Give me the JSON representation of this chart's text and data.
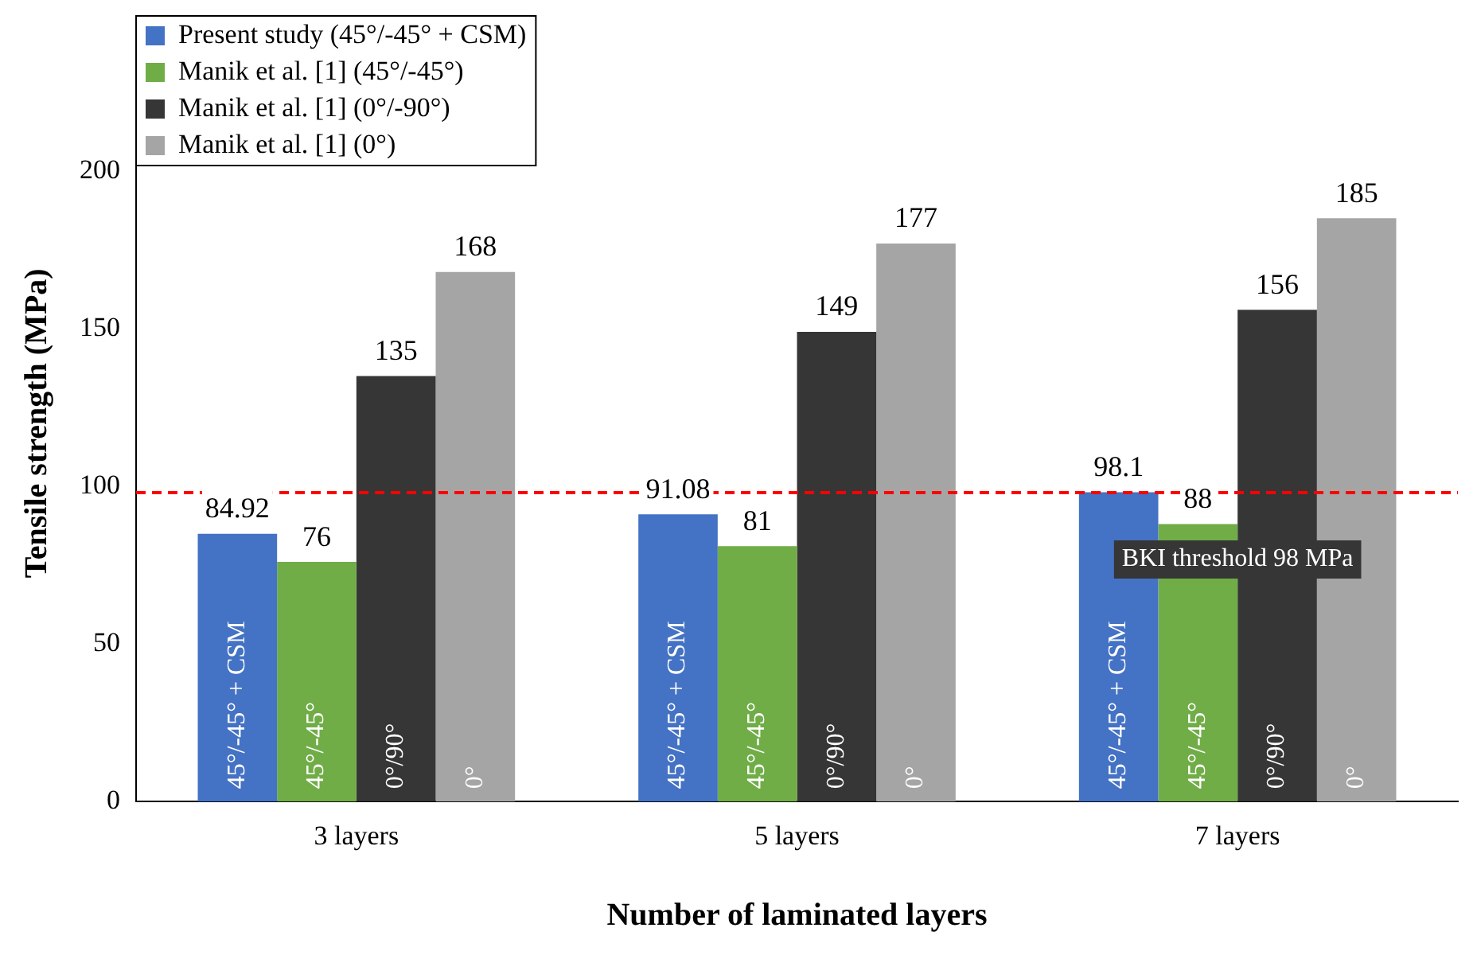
{
  "chart_data": {
    "type": "bar",
    "xlabel": "Number of laminated layers",
    "ylabel": "Tensile strength (MPa)",
    "categories": [
      "3 layers",
      "5 layers",
      "7 layers"
    ],
    "series": [
      {
        "name": "Present study (45°/-45° + CSM)",
        "color": "#4472c4",
        "values": [
          84.92,
          91.08,
          98.1
        ]
      },
      {
        "name": "Manik et al. [1] (45°/-45°)",
        "color": "#70ad47",
        "values": [
          76,
          81,
          88
        ]
      },
      {
        "name": "Manik et al. [1] (0°/-90°)",
        "color": "#363636",
        "values": [
          135,
          149,
          156
        ]
      },
      {
        "name": "Manik et al. [1] (0°)",
        "color": "#a5a5a5",
        "values": [
          168,
          177,
          185
        ]
      }
    ],
    "ylim": [
      0,
      240
    ],
    "yticks": [
      0,
      50,
      100,
      150,
      200
    ],
    "grid": false,
    "legend": "top left",
    "data_labels": true,
    "ref_lines": [
      {
        "axis": "y",
        "value": 98,
        "label": "BKI threshold 98 MPa",
        "color": "#ff0000",
        "line_style": "dashed"
      }
    ],
    "annotations": [
      "45°/-45° + CSM",
      "45°/-45°",
      "0°/90°",
      "0°",
      "45°/-45° + CSM",
      "45°/-45°",
      "0°/90°",
      "0°",
      "45°/-45° + CSM",
      "45°/-45°",
      "0°/90°",
      "0°"
    ]
  }
}
